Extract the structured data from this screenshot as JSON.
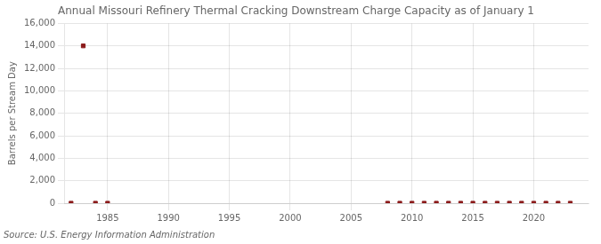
{
  "chart_data": {
    "type": "scatter",
    "title": "Annual Missouri Refinery Thermal Cracking Downstream Charge Capacity as of January 1",
    "y_label": "Barrels per Stream Day",
    "annotations": [
      "Source: U.S. Energy Information Administration"
    ],
    "x": [
      1982,
      1983,
      1984,
      1985,
      2008,
      2009,
      2010,
      2011,
      2012,
      2013,
      2014,
      2015,
      2016,
      2017,
      2018,
      2019,
      2020,
      2021,
      2022,
      2023
    ],
    "values": [
      0,
      14000,
      0,
      0,
      0,
      0,
      0,
      0,
      0,
      0,
      0,
      0,
      0,
      0,
      0,
      0,
      0,
      0,
      0,
      0
    ],
    "color": "#8b1a1a",
    "marker": "square",
    "xlim": [
      1981.5,
      2024.5
    ],
    "xticks": [
      1985,
      1990,
      1995,
      2000,
      2005,
      2010,
      2015,
      2020
    ],
    "ylim": [
      0,
      16000
    ],
    "yticks": [
      0,
      {
        "value": 2000,
        "label": "2,000"
      },
      {
        "value": 4000,
        "label": "4,000"
      },
      {
        "value": 6000,
        "label": "6,000"
      },
      {
        "value": 8000,
        "label": "8,000"
      },
      {
        "value": 10000,
        "label": "10,000"
      },
      {
        "value": 12000,
        "label": "12,000"
      },
      {
        "value": 14000,
        "label": "14,000"
      },
      {
        "value": 16000,
        "label": "16,000"
      }
    ],
    "grid": true
  }
}
